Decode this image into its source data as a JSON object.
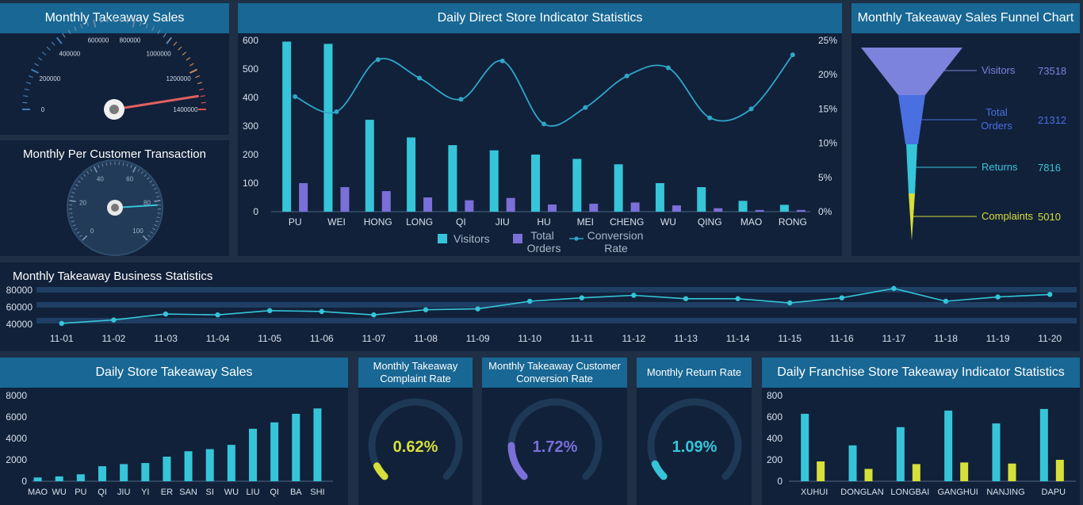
{
  "panels": {
    "monthly_sales_title": "Monthly Takeaway Sales",
    "per_customer_title": "Monthly Per Customer Transaction",
    "direct_store_title": "Daily Direct  Store Indicator Statistics",
    "funnel_title": "Monthly Takeaway Sales Funnel Chart",
    "business_title": "Monthly Takeaway Business Statistics",
    "daily_store_title": "Daily Store Takeaway Sales",
    "complaint_title": "Monthly Takeaway Complaint Rate",
    "conversion_title": "Monthly Takeaway Customer Conversion Rate",
    "return_title": "Monthly Return Rate",
    "franchise_title": "Daily Franchise Store Takeaway Indicator Statistics"
  },
  "colors": {
    "cyan": "#36c5d8",
    "purple": "#7b6fd8",
    "yellow": "#d7df3a",
    "blue": "#4a6fe0",
    "header": "#186794",
    "panel": "#11213a"
  },
  "chart_data": [
    {
      "id": "sales-gauge",
      "type": "gauge",
      "title": "Monthly Takeaway Sales",
      "tick_labels": [
        "0",
        "200000",
        "400000",
        "600000",
        "800000",
        "1000000",
        "1200000",
        "1400000"
      ],
      "range": [
        0,
        1400000
      ],
      "value": 1330000
    },
    {
      "id": "per-customer-gauge",
      "type": "gauge",
      "title": "Monthly Per Customer Transaction",
      "tick_labels": [
        "0",
        "20",
        "40",
        "60",
        "80",
        "100"
      ],
      "range": [
        0,
        100
      ],
      "value": 82
    },
    {
      "id": "direct-store",
      "type": "bar",
      "title": "Daily Direct  Store Indicator Statistics",
      "categories": [
        "PU",
        "WEI",
        "HONG",
        "LONG",
        "QI",
        "JIU",
        "HU",
        "MEI",
        "CHENG",
        "WU",
        "QING",
        "MAO",
        "RONG"
      ],
      "series": [
        {
          "name": "Visitors",
          "type": "bar",
          "values": [
            596,
            588,
            322,
            260,
            233,
            215,
            200,
            185,
            166,
            100,
            86,
            38,
            24
          ]
        },
        {
          "name": "Total Orders",
          "type": "bar",
          "values": [
            100,
            86,
            72,
            50,
            40,
            48,
            25,
            28,
            32,
            22,
            12,
            6,
            6
          ]
        },
        {
          "name": "Conversion Rate",
          "type": "line",
          "axis": "right",
          "values": [
            16.8,
            14.6,
            22.2,
            19.5,
            16.4,
            22.0,
            12.8,
            15.2,
            19.8,
            21.0,
            13.7,
            15.0,
            22.9
          ]
        }
      ],
      "y_ticks": [
        "0",
        "100",
        "200",
        "300",
        "400",
        "500",
        "600"
      ],
      "y2_ticks": [
        "0%",
        "5%",
        "10%",
        "15%",
        "20%",
        "25%"
      ],
      "ylim": [
        0,
        600
      ],
      "y2lim": [
        0,
        25
      ],
      "legend": [
        "Visitors",
        "Total\nOrders",
        "Conversion\nRate"
      ],
      "legend_position": "bottom"
    },
    {
      "id": "funnel",
      "type": "funnel",
      "title": "Monthly Takeaway Sales Funnel Chart",
      "stages": [
        {
          "name": "Visitors",
          "value": 73518
        },
        {
          "name": "Total Orders",
          "value": 21312
        },
        {
          "name": "Returns",
          "value": 7816
        },
        {
          "name": "Complaints",
          "value": 5010
        }
      ]
    },
    {
      "id": "business",
      "type": "line",
      "title": "Monthly Takeaway Business Statistics",
      "x": [
        "11-01",
        "11-02",
        "11-03",
        "11-04",
        "11-05",
        "11-06",
        "11-07",
        "11-08",
        "11-09",
        "11-10",
        "11-11",
        "11-12",
        "11-13",
        "11-14",
        "11-15",
        "11-16",
        "11-17",
        "11-18",
        "11-19",
        "11-20"
      ],
      "values": [
        41000,
        45000,
        52000,
        51000,
        56000,
        55000,
        51000,
        57000,
        58000,
        67000,
        71000,
        74000,
        70000,
        70000,
        65000,
        71000,
        82000,
        67000,
        72000,
        75000
      ],
      "y_ticks": [
        "40000",
        "60000",
        "80000"
      ],
      "ylim": [
        40000,
        80000
      ]
    },
    {
      "id": "daily-store",
      "type": "bar",
      "title": "Daily Store Takeaway Sales",
      "categories": [
        "MAO",
        "WU",
        "PU",
        "QI",
        "JIU",
        "YI",
        "ER",
        "SAN",
        "SI",
        "WU",
        "LIU",
        "QI",
        "BA",
        "SHI"
      ],
      "values": [
        350,
        450,
        650,
        1400,
        1600,
        1700,
        2300,
        2800,
        3000,
        3400,
        4900,
        5500,
        6300,
        6800
      ],
      "y_ticks": [
        "0",
        "2000",
        "4000",
        "6000",
        "8000"
      ],
      "ylim": [
        0,
        8000
      ]
    },
    {
      "id": "complaint-rate",
      "type": "gauge",
      "title": "Monthly Takeaway Complaint Rate",
      "value_label": "0.62%",
      "value": 0.62
    },
    {
      "id": "conversion-rate",
      "type": "gauge",
      "title": "Monthly Takeaway Customer Conversion Rate",
      "value_label": "1.72%",
      "value": 1.72
    },
    {
      "id": "return-rate",
      "type": "gauge",
      "title": "Monthly Return Rate",
      "value_label": "1.09%",
      "value": 1.09
    },
    {
      "id": "franchise",
      "type": "bar",
      "title": "Daily Franchise Store Takeaway Indicator Statistics",
      "categories": [
        "XUHUI",
        "DONGLAN",
        "LONGBAI",
        "GANGHUI",
        "NANJING",
        "DAPU"
      ],
      "series": [
        {
          "values": [
            630,
            335,
            505,
            660,
            540,
            675
          ]
        },
        {
          "values": [
            185,
            115,
            160,
            175,
            165,
            200
          ]
        }
      ],
      "y_ticks": [
        "0",
        "200",
        "400",
        "600",
        "800"
      ],
      "ylim": [
        0,
        800
      ]
    }
  ]
}
